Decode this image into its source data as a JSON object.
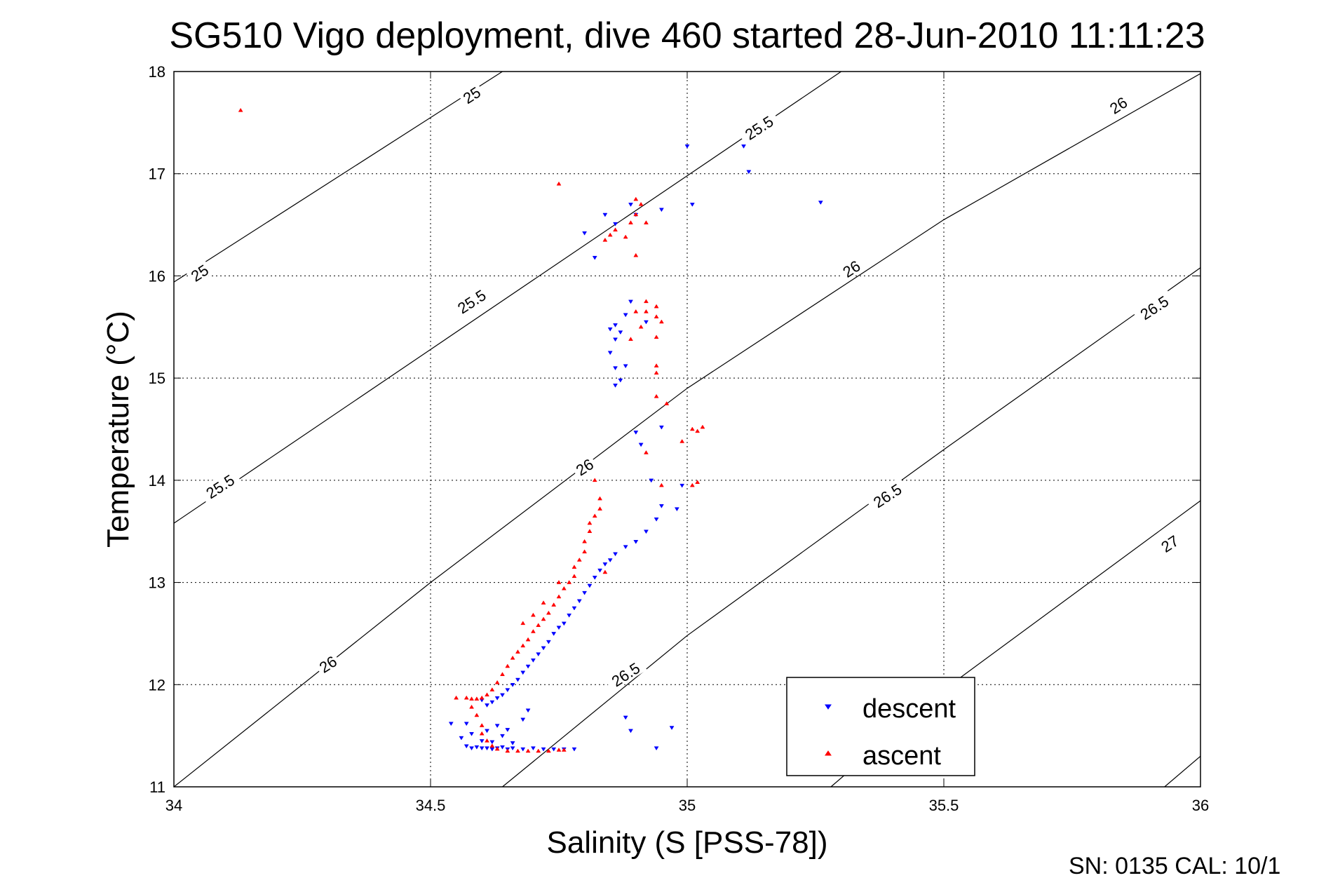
{
  "chart_data": {
    "type": "scatter",
    "title": "SG510 Vigo deployment, dive 460 started 28-Jun-2010 11:11:23",
    "xlabel": "Salinity (S [PSS-78])",
    "ylabel": "Temperature (°C)",
    "xlim": [
      34,
      36
    ],
    "ylim": [
      11,
      18
    ],
    "x_ticks": [
      "34",
      "34.5",
      "35",
      "35.5",
      "36"
    ],
    "y_ticks": [
      "11",
      "12",
      "13",
      "14",
      "15",
      "16",
      "17",
      "18"
    ],
    "grid": true,
    "legend_position": "bottom-right",
    "footer": "SN: 0135  CAL: 10/1",
    "contours": [
      {
        "label": "25",
        "points": [
          [
            34.0,
            15.94
          ],
          [
            34.64,
            18.0
          ]
        ]
      },
      {
        "label": "25.5",
        "points": [
          [
            34.0,
            13.58
          ],
          [
            35.3,
            18.0
          ]
        ]
      },
      {
        "label": "26",
        "points": [
          [
            34.0,
            11.0
          ],
          [
            34.5,
            13.0
          ],
          [
            35.0,
            14.9
          ],
          [
            35.5,
            16.55
          ],
          [
            36.0,
            17.98
          ]
        ]
      },
      {
        "label": "26.5",
        "points": [
          [
            34.64,
            11.0
          ],
          [
            35.0,
            12.48
          ],
          [
            35.5,
            14.3
          ],
          [
            36.0,
            16.08
          ]
        ]
      },
      {
        "label": "27",
        "points": [
          [
            35.28,
            11.0
          ],
          [
            35.5,
            11.95
          ],
          [
            36.0,
            13.8
          ]
        ]
      },
      {
        "label": "",
        "points": [
          [
            35.93,
            11.0
          ],
          [
            36.0,
            11.3
          ]
        ]
      }
    ],
    "contour_labels": [
      {
        "text": "25",
        "x": 34.58,
        "y": 17.77
      },
      {
        "text": "25",
        "x": 34.05,
        "y": 16.03
      },
      {
        "text": "25.5",
        "x": 34.58,
        "y": 15.75
      },
      {
        "text": "25.5",
        "x": 34.09,
        "y": 13.94
      },
      {
        "text": "25.5",
        "x": 35.14,
        "y": 17.45
      },
      {
        "text": "26",
        "x": 34.3,
        "y": 12.2
      },
      {
        "text": "26",
        "x": 34.8,
        "y": 14.13
      },
      {
        "text": "26",
        "x": 35.32,
        "y": 16.07
      },
      {
        "text": "26",
        "x": 35.84,
        "y": 17.67
      },
      {
        "text": "26.5",
        "x": 34.88,
        "y": 12.1
      },
      {
        "text": "26.5",
        "x": 35.39,
        "y": 13.85
      },
      {
        "text": "26.5",
        "x": 35.91,
        "y": 15.69
      },
      {
        "text": "27",
        "x": 35.94,
        "y": 13.38
      }
    ],
    "series": [
      {
        "name": "descent",
        "color": "#0000ff",
        "marker": "triangle-down",
        "points": [
          [
            34.54,
            11.62
          ],
          [
            34.56,
            11.48
          ],
          [
            34.57,
            11.4
          ],
          [
            34.58,
            11.38
          ],
          [
            34.59,
            11.39
          ],
          [
            34.6,
            11.38
          ],
          [
            34.61,
            11.38
          ],
          [
            34.62,
            11.37
          ],
          [
            34.63,
            11.38
          ],
          [
            34.64,
            11.39
          ],
          [
            34.65,
            11.37
          ],
          [
            34.66,
            11.38
          ],
          [
            34.68,
            11.37
          ],
          [
            34.7,
            11.38
          ],
          [
            34.72,
            11.37
          ],
          [
            34.74,
            11.37
          ],
          [
            34.76,
            11.37
          ],
          [
            34.78,
            11.37
          ],
          [
            34.57,
            11.62
          ],
          [
            34.58,
            11.52
          ],
          [
            34.6,
            11.45
          ],
          [
            34.61,
            11.55
          ],
          [
            34.62,
            11.44
          ],
          [
            34.63,
            11.6
          ],
          [
            34.64,
            11.5
          ],
          [
            34.65,
            11.56
          ],
          [
            34.66,
            11.43
          ],
          [
            34.6,
            11.85
          ],
          [
            34.61,
            11.8
          ],
          [
            34.62,
            11.83
          ],
          [
            34.63,
            11.87
          ],
          [
            34.64,
            11.9
          ],
          [
            34.65,
            11.95
          ],
          [
            34.66,
            12.0
          ],
          [
            34.67,
            12.05
          ],
          [
            34.68,
            12.12
          ],
          [
            34.69,
            12.18
          ],
          [
            34.7,
            12.24
          ],
          [
            34.71,
            12.3
          ],
          [
            34.72,
            12.36
          ],
          [
            34.73,
            12.42
          ],
          [
            34.74,
            12.5
          ],
          [
            34.75,
            12.56
          ],
          [
            34.76,
            12.6
          ],
          [
            34.77,
            12.68
          ],
          [
            34.78,
            12.75
          ],
          [
            34.79,
            12.82
          ],
          [
            34.8,
            12.9
          ],
          [
            34.81,
            12.97
          ],
          [
            34.82,
            13.05
          ],
          [
            34.83,
            13.12
          ],
          [
            34.84,
            13.18
          ],
          [
            34.85,
            13.22
          ],
          [
            34.86,
            13.28
          ],
          [
            34.88,
            13.35
          ],
          [
            34.9,
            13.4
          ],
          [
            34.92,
            13.5
          ],
          [
            34.94,
            13.62
          ],
          [
            34.95,
            13.75
          ],
          [
            34.98,
            13.72
          ],
          [
            34.99,
            13.95
          ],
          [
            34.93,
            14.0
          ],
          [
            34.95,
            14.52
          ],
          [
            34.9,
            14.47
          ],
          [
            34.91,
            14.35
          ],
          [
            34.88,
            11.68
          ],
          [
            34.89,
            11.55
          ],
          [
            34.94,
            11.38
          ],
          [
            34.97,
            11.58
          ],
          [
            34.69,
            11.75
          ],
          [
            34.68,
            11.66
          ],
          [
            34.82,
            16.18
          ],
          [
            34.84,
            16.6
          ],
          [
            34.86,
            16.51
          ],
          [
            34.89,
            16.7
          ],
          [
            34.9,
            16.6
          ],
          [
            34.95,
            16.65
          ],
          [
            35.01,
            16.7
          ],
          [
            35.0,
            17.27
          ],
          [
            35.11,
            17.27
          ],
          [
            35.12,
            17.02
          ],
          [
            35.26,
            16.72
          ],
          [
            34.86,
            15.52
          ],
          [
            34.85,
            15.48
          ],
          [
            34.86,
            15.38
          ],
          [
            34.85,
            15.25
          ],
          [
            34.86,
            15.1
          ],
          [
            34.86,
            14.93
          ],
          [
            34.87,
            14.98
          ],
          [
            34.88,
            15.12
          ],
          [
            34.87,
            15.45
          ],
          [
            34.88,
            15.62
          ],
          [
            34.89,
            15.75
          ],
          [
            34.92,
            15.55
          ],
          [
            34.8,
            16.42
          ]
        ]
      },
      {
        "name": "ascent",
        "color": "#ff0000",
        "marker": "triangle-up",
        "points": [
          [
            34.55,
            11.87
          ],
          [
            34.57,
            11.87
          ],
          [
            34.58,
            11.86
          ],
          [
            34.59,
            11.86
          ],
          [
            34.6,
            11.87
          ],
          [
            34.61,
            11.9
          ],
          [
            34.62,
            11.95
          ],
          [
            34.63,
            12.02
          ],
          [
            34.64,
            12.1
          ],
          [
            34.65,
            12.18
          ],
          [
            34.66,
            12.26
          ],
          [
            34.67,
            12.32
          ],
          [
            34.68,
            12.38
          ],
          [
            34.69,
            12.44
          ],
          [
            34.7,
            12.52
          ],
          [
            34.71,
            12.58
          ],
          [
            34.72,
            12.64
          ],
          [
            34.73,
            12.7
          ],
          [
            34.74,
            12.78
          ],
          [
            34.75,
            12.86
          ],
          [
            34.76,
            12.94
          ],
          [
            34.77,
            13.0
          ],
          [
            34.78,
            13.06
          ],
          [
            34.78,
            13.15
          ],
          [
            34.79,
            13.22
          ],
          [
            34.8,
            13.3
          ],
          [
            34.8,
            13.4
          ],
          [
            34.81,
            13.5
          ],
          [
            34.81,
            13.58
          ],
          [
            34.82,
            13.65
          ],
          [
            34.83,
            13.72
          ],
          [
            34.83,
            13.82
          ],
          [
            34.82,
            14.0
          ],
          [
            34.58,
            11.78
          ],
          [
            34.59,
            11.7
          ],
          [
            34.6,
            11.6
          ],
          [
            34.6,
            11.52
          ],
          [
            34.61,
            11.45
          ],
          [
            34.62,
            11.4
          ],
          [
            34.63,
            11.37
          ],
          [
            34.65,
            11.35
          ],
          [
            34.67,
            11.35
          ],
          [
            34.69,
            11.35
          ],
          [
            34.71,
            11.35
          ],
          [
            34.73,
            11.35
          ],
          [
            34.75,
            11.36
          ],
          [
            34.76,
            11.36
          ],
          [
            34.75,
            16.9
          ],
          [
            34.13,
            17.62
          ],
          [
            34.84,
            16.35
          ],
          [
            34.85,
            16.4
          ],
          [
            34.86,
            16.45
          ],
          [
            34.88,
            16.38
          ],
          [
            34.89,
            16.52
          ],
          [
            34.9,
            16.6
          ],
          [
            34.91,
            16.7
          ],
          [
            34.9,
            16.75
          ],
          [
            34.92,
            16.52
          ],
          [
            34.9,
            16.2
          ],
          [
            34.9,
            15.65
          ],
          [
            34.92,
            15.75
          ],
          [
            34.92,
            15.65
          ],
          [
            34.91,
            15.5
          ],
          [
            34.94,
            15.7
          ],
          [
            34.95,
            15.55
          ],
          [
            34.94,
            15.6
          ],
          [
            34.94,
            15.4
          ],
          [
            34.89,
            15.38
          ],
          [
            34.94,
            15.12
          ],
          [
            34.94,
            15.05
          ],
          [
            34.94,
            14.82
          ],
          [
            34.96,
            14.75
          ],
          [
            34.95,
            13.95
          ],
          [
            34.92,
            14.27
          ],
          [
            34.99,
            14.38
          ],
          [
            35.01,
            14.5
          ],
          [
            35.02,
            14.48
          ],
          [
            35.03,
            14.52
          ],
          [
            35.01,
            13.95
          ],
          [
            35.02,
            13.98
          ],
          [
            34.84,
            13.1
          ],
          [
            34.75,
            13.0
          ],
          [
            34.72,
            12.8
          ],
          [
            34.7,
            12.68
          ],
          [
            34.68,
            12.6
          ]
        ]
      }
    ]
  }
}
